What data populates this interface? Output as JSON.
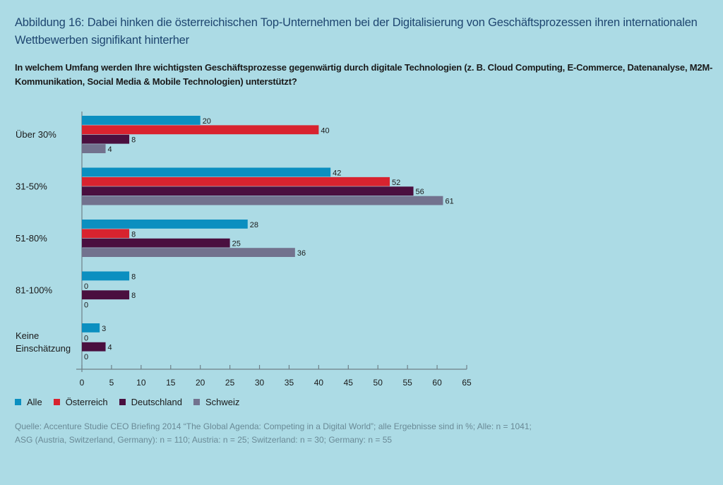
{
  "header": {
    "title": "Abbildung 16: Dabei hinken die österreichischen Top-Unternehmen bei der Digitalisierung von Geschäftsprozessen ihren internationalen Wettbewerben signifikant hinterher",
    "subtitle": "In welchem Umfang werden Ihre wichtigsten Geschäftsprozesse gegenwärtig durch digitale Technologien (z. B. Cloud Computing, E-Commerce, Datenanalyse, M2M-Kommunikation, Social Media & Mobile Technologien) unterstützt?"
  },
  "footer": {
    "source_line1": "Quelle: Accenture Studie CEO Briefing 2014 “The Global Agenda: Competing in a Digital World”; alle Ergebnisse sind in %;  Alle: n = 1041;",
    "source_line2": "ASG (Austria, Switzerland, Germany): n = 110; Austria: n = 25; Switzerland: n = 30; Germany: n = 55"
  },
  "chart_data": {
    "type": "bar",
    "orientation": "horizontal",
    "title": "In welchem Umfang werden Ihre wichtigsten Geschäftsprozesse gegenwärtig durch digitale Technologien unterstützt?",
    "xlabel": "",
    "ylabel": "",
    "xlim": [
      0,
      65
    ],
    "xticks": [
      0,
      5,
      10,
      15,
      20,
      25,
      30,
      35,
      40,
      45,
      50,
      55,
      60,
      65
    ],
    "grid": false,
    "legend_position": "bottom-left",
    "categories": [
      [
        "Über 30%"
      ],
      [
        "31-50%"
      ],
      [
        "51-80%"
      ],
      [
        "81-100%"
      ],
      [
        "Keine",
        "Einschätzung"
      ]
    ],
    "series": [
      {
        "name": "Alle",
        "color": "#0b8fc0",
        "values": [
          20,
          42,
          28,
          8,
          3
        ]
      },
      {
        "name": "Österreich",
        "color": "#d8232f",
        "values": [
          40,
          52,
          8,
          0,
          0
        ]
      },
      {
        "name": "Deutschland",
        "color": "#4a0f3f",
        "values": [
          8,
          56,
          25,
          8,
          4
        ]
      },
      {
        "name": "Schweiz",
        "color": "#72728e",
        "values": [
          4,
          61,
          36,
          0,
          0
        ]
      }
    ]
  }
}
